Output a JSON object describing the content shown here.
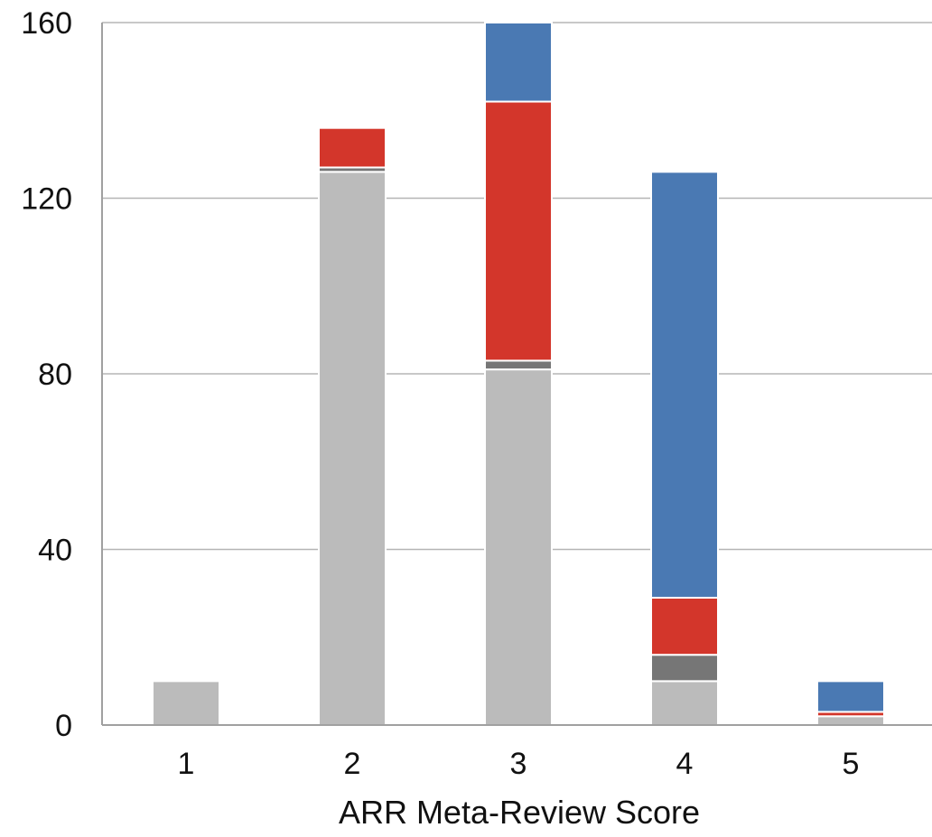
{
  "chart_data": {
    "type": "bar",
    "stacked": true,
    "title": "",
    "xlabel": "ARR Meta-Review Score",
    "ylabel": "",
    "categories": [
      "1",
      "2",
      "3",
      "4",
      "5"
    ],
    "ylim": [
      0,
      160
    ],
    "yticks": [
      0,
      40,
      80,
      120,
      160
    ],
    "grid": true,
    "series": [
      {
        "color": "#bbbbbb",
        "values": [
          10,
          126,
          81,
          10,
          2
        ]
      },
      {
        "color": "#767676",
        "values": [
          0,
          1,
          2,
          6,
          0
        ]
      },
      {
        "color": "#d3362b",
        "values": [
          0,
          9,
          59,
          13,
          1
        ]
      },
      {
        "color": "#4a79b3",
        "values": [
          0,
          0,
          18,
          97,
          7
        ]
      }
    ]
  }
}
